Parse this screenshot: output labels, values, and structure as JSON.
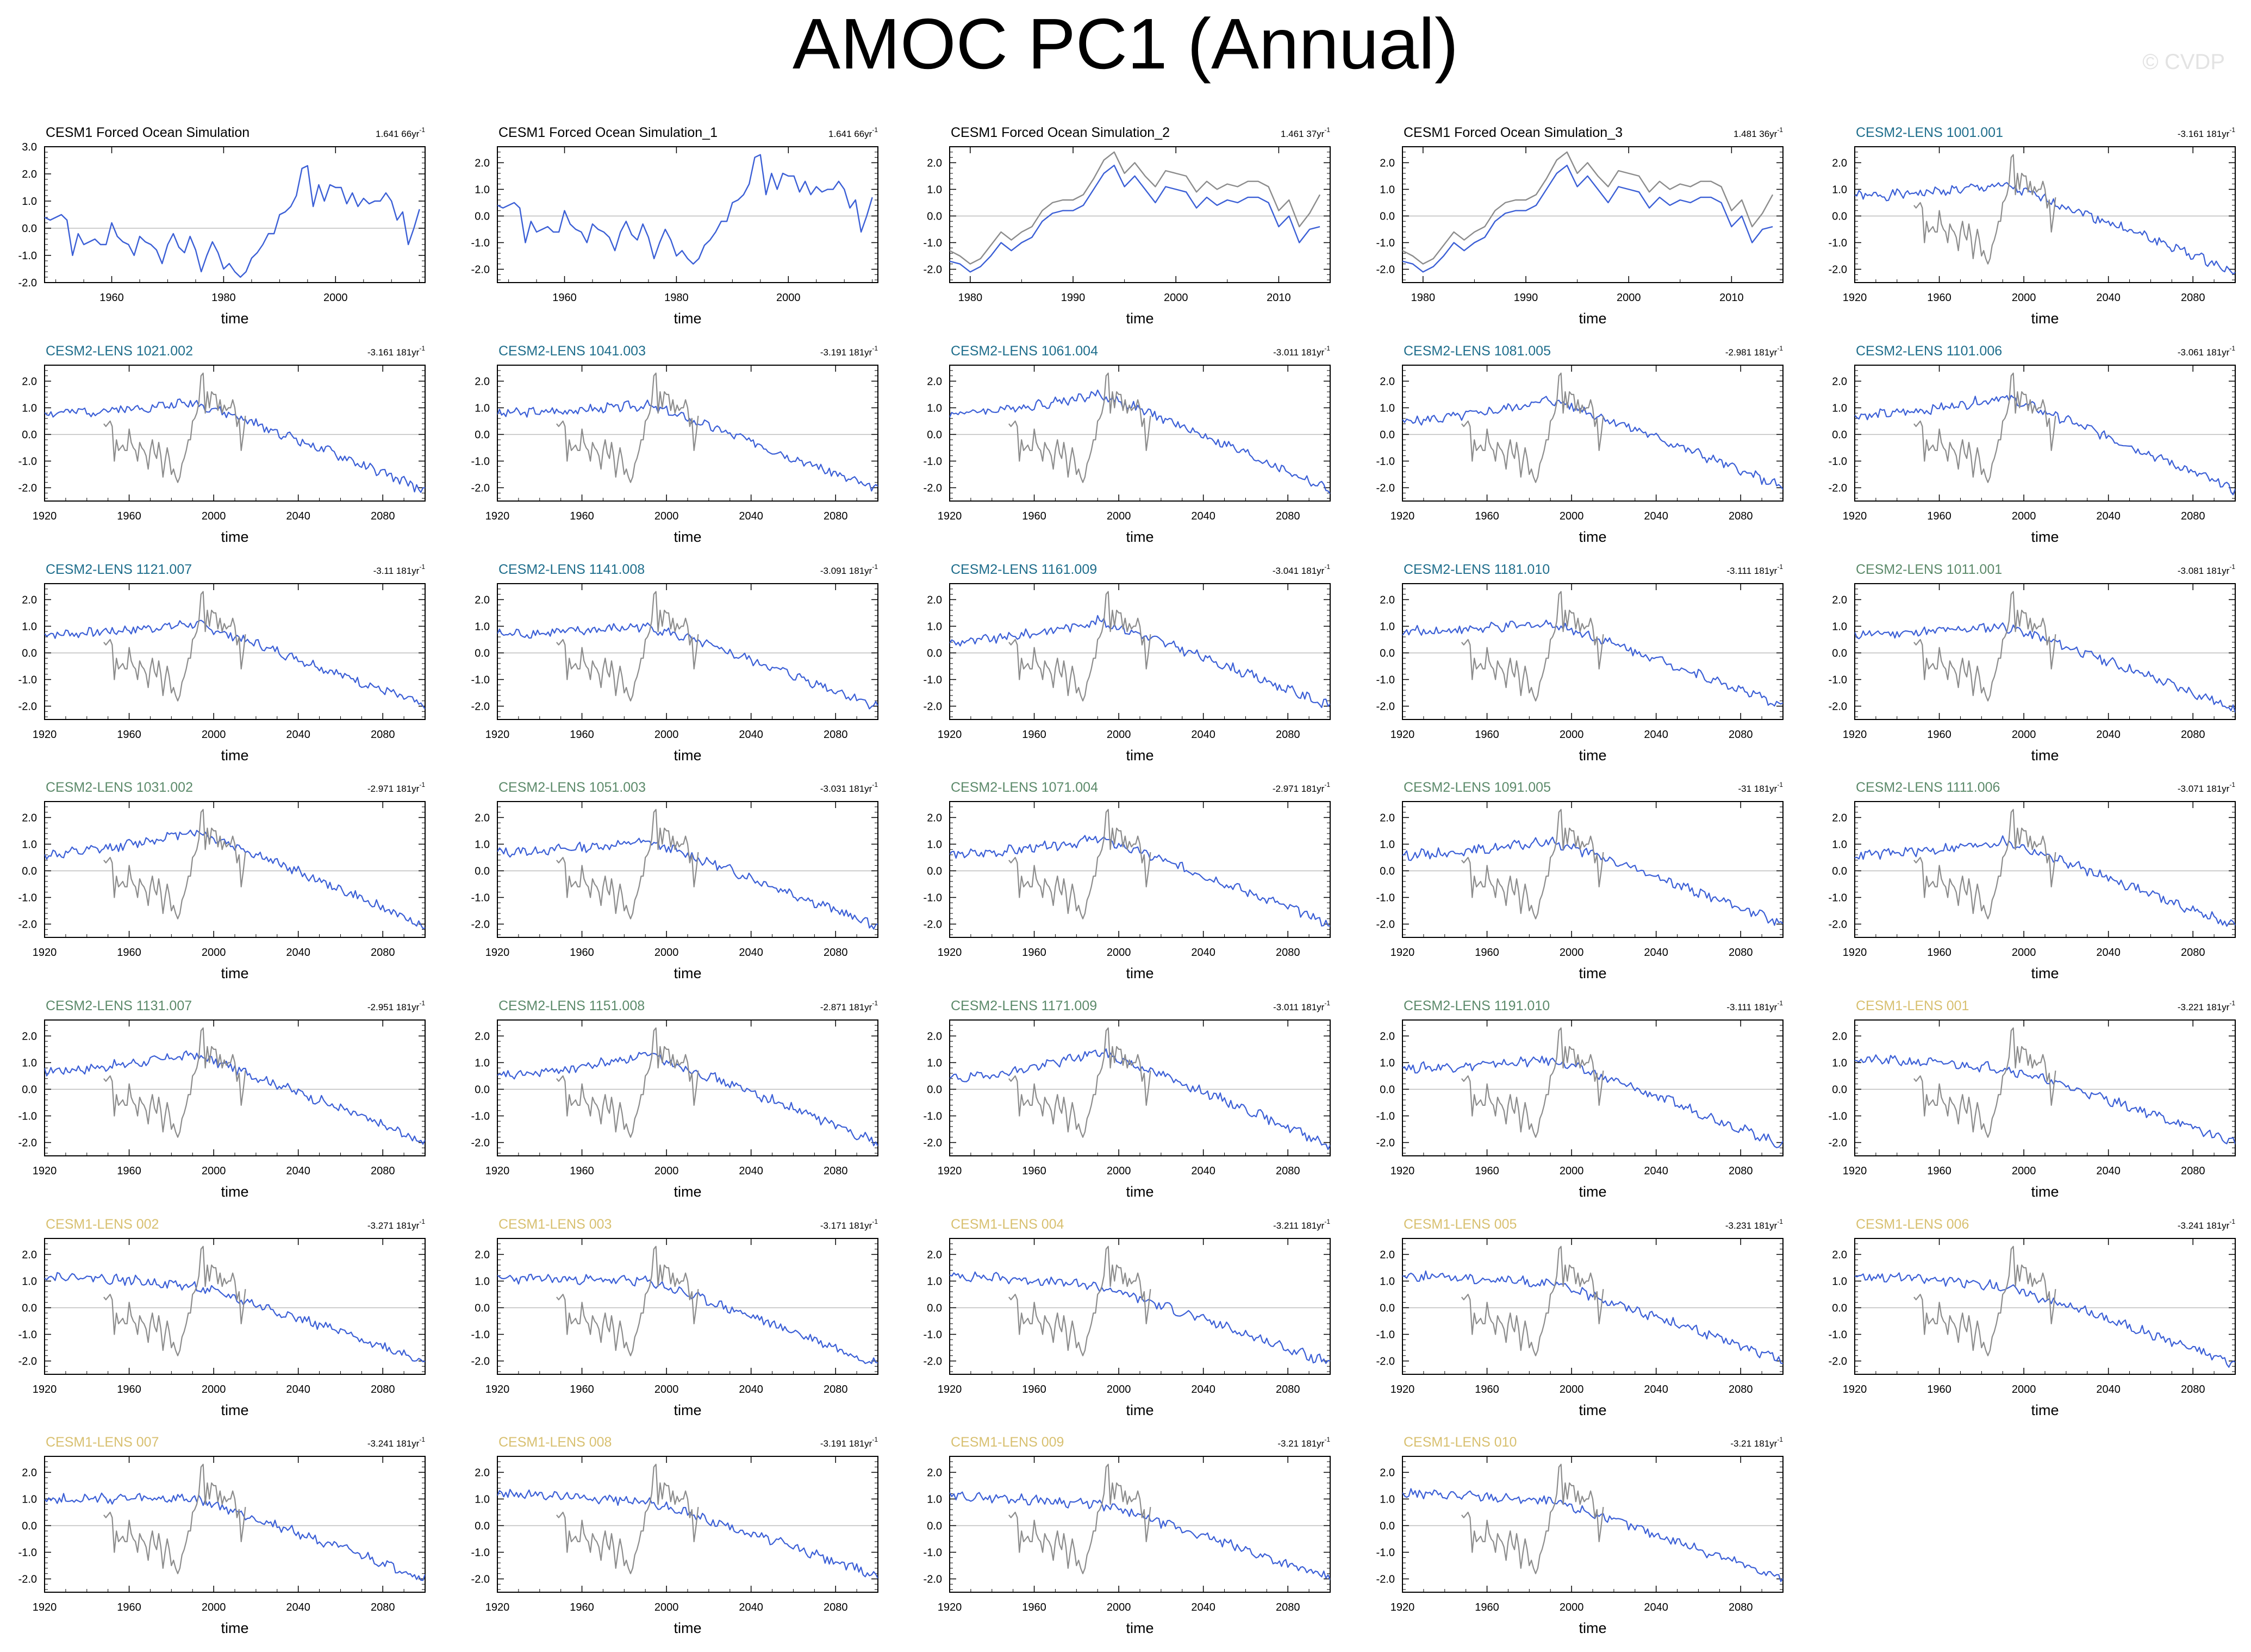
{
  "title": "AMOC PC1 (Annual)",
  "watermark": "© CVDP",
  "colors": {
    "model_line": "#3b5fd6",
    "observed_line": "#8c8c8c",
    "zero_line": "#bdbdbd",
    "title_obs": "#000000",
    "title_cesm2_teal": "#1f6e8c",
    "title_cesm2_green": "#5c8a6a",
    "title_cesm1": "#d8c070"
  },
  "chart_data": [
    {
      "type": "line",
      "title": "CESM1 Forced Ocean Simulation",
      "trend": "1.641 66yr",
      "trend_unit": "-1",
      "title_color": "title_obs",
      "xlabel": "time",
      "xlim": [
        1948,
        2016
      ],
      "xticks": [
        "1960",
        "1980",
        "2000"
      ],
      "ylim": [
        -2.0,
        3.0
      ],
      "yticks": [
        "3.0",
        "2.0",
        "1.0",
        "0.0",
        "-1.0",
        "-2.0"
      ],
      "series": [
        {
          "name": "CESM1 Forced Ocean Simulation",
          "color": "model_line",
          "x_start": 1948,
          "x_end": 2015,
          "values": [
            0.4,
            0.3,
            0.4,
            0.5,
            0.3,
            -1.0,
            -0.2,
            -0.6,
            -0.5,
            -0.4,
            -0.6,
            -0.6,
            0.2,
            -0.3,
            -0.5,
            -0.6,
            -1.0,
            -0.3,
            -0.5,
            -0.6,
            -0.8,
            -1.3,
            -0.6,
            -0.2,
            -0.7,
            -0.9,
            -0.3,
            -0.8,
            -1.6,
            -1.0,
            -0.5,
            -0.9,
            -1.5,
            -1.3,
            -1.6,
            -1.8,
            -1.6,
            -1.1,
            -0.9,
            -0.6,
            -0.2,
            -0.2,
            0.5,
            0.6,
            0.8,
            1.2,
            2.2,
            2.3,
            0.8,
            1.6,
            1.0,
            1.6,
            1.5,
            1.5,
            0.9,
            1.3,
            0.8,
            1.1,
            0.9,
            1.0,
            1.0,
            1.3,
            1.0,
            0.3,
            0.6,
            -0.6,
            0.0,
            0.7
          ]
        }
      ]
    },
    {
      "type": "line",
      "title": "CESM1 Forced Ocean Simulation_1",
      "trend": "1.641 66yr",
      "trend_unit": "-1",
      "title_color": "title_obs",
      "xlabel": "time",
      "xlim": [
        1948,
        2016
      ],
      "xticks": [
        "1960",
        "1980",
        "2000"
      ],
      "ylim": [
        -2.5,
        2.6
      ],
      "yticks": [
        "2.0",
        "1.0",
        "0.0",
        "-1.0",
        "-2.0"
      ],
      "series": [
        {
          "name": "CESM1 Forced Ocean Simulation_1",
          "color": "model_line",
          "x_start": 1948,
          "x_end": 2015,
          "values": [
            0.4,
            0.3,
            0.4,
            0.5,
            0.3,
            -1.0,
            -0.2,
            -0.6,
            -0.5,
            -0.4,
            -0.6,
            -0.6,
            0.2,
            -0.3,
            -0.5,
            -0.6,
            -1.0,
            -0.3,
            -0.5,
            -0.6,
            -0.8,
            -1.3,
            -0.6,
            -0.2,
            -0.7,
            -0.9,
            -0.3,
            -0.8,
            -1.6,
            -1.0,
            -0.5,
            -0.9,
            -1.5,
            -1.3,
            -1.6,
            -1.8,
            -1.6,
            -1.1,
            -0.9,
            -0.6,
            -0.2,
            -0.2,
            0.5,
            0.6,
            0.8,
            1.2,
            2.2,
            2.3,
            0.8,
            1.6,
            1.0,
            1.6,
            1.5,
            1.5,
            0.9,
            1.3,
            0.8,
            1.1,
            0.9,
            1.0,
            1.0,
            1.3,
            1.0,
            0.3,
            0.6,
            -0.6,
            0.0,
            0.7
          ]
        }
      ]
    },
    {
      "type": "line",
      "title": "CESM1 Forced Ocean Simulation_2",
      "trend": "1.461 37yr",
      "trend_unit": "-1",
      "title_color": "title_obs",
      "xlabel": "time",
      "xlim": [
        1978,
        2015
      ],
      "xticks": [
        "1980",
        "1990",
        "2000",
        "2010"
      ],
      "ylim": [
        -2.5,
        2.6
      ],
      "yticks": [
        "2.0",
        "1.0",
        "0.0",
        "-1.0",
        "-2.0"
      ],
      "series": [
        {
          "name": "CESM1 Forced Ocean Simulation",
          "color": "observed_line",
          "x_start": 1978,
          "x_end": 2014,
          "values": [
            -1.3,
            -1.5,
            -1.8,
            -1.6,
            -1.1,
            -0.6,
            -0.9,
            -0.6,
            -0.4,
            0.2,
            0.5,
            0.6,
            0.6,
            0.8,
            1.4,
            2.1,
            2.4,
            1.6,
            2.0,
            1.5,
            1.1,
            1.7,
            1.6,
            1.5,
            0.9,
            1.3,
            1.0,
            1.2,
            1.1,
            1.3,
            1.3,
            1.1,
            0.2,
            0.6,
            -0.4,
            0.1,
            0.8
          ]
        },
        {
          "name": "CESM1 Forced Ocean Simulation_2",
          "color": "model_line",
          "x_start": 1978,
          "x_end": 2014,
          "values": [
            -1.7,
            -1.8,
            -2.1,
            -1.9,
            -1.5,
            -1.0,
            -1.3,
            -1.0,
            -0.8,
            -0.2,
            0.1,
            0.2,
            0.2,
            0.4,
            1.0,
            1.6,
            1.9,
            1.1,
            1.5,
            1.0,
            0.5,
            1.1,
            1.0,
            0.9,
            0.3,
            0.7,
            0.4,
            0.6,
            0.5,
            0.7,
            0.7,
            0.5,
            -0.4,
            0.0,
            -1.0,
            -0.5,
            -0.4
          ]
        }
      ]
    },
    {
      "type": "line",
      "title": "CESM1 Forced Ocean Simulation_3",
      "trend": "1.481 36yr",
      "trend_unit": "-1",
      "title_color": "title_obs",
      "xlabel": "time",
      "xlim": [
        1978,
        2015
      ],
      "xticks": [
        "1980",
        "1990",
        "2000",
        "2010"
      ],
      "ylim": [
        -2.5,
        2.6
      ],
      "yticks": [
        "2.0",
        "1.0",
        "0.0",
        "-1.0",
        "-2.0"
      ],
      "series": [
        {
          "name": "CESM1 Forced Ocean Simulation",
          "color": "observed_line",
          "x_start": 1978,
          "x_end": 2014,
          "values": [
            -1.3,
            -1.5,
            -1.8,
            -1.6,
            -1.1,
            -0.6,
            -0.9,
            -0.6,
            -0.4,
            0.2,
            0.5,
            0.6,
            0.6,
            0.8,
            1.4,
            2.1,
            2.4,
            1.6,
            2.0,
            1.5,
            1.1,
            1.7,
            1.6,
            1.5,
            0.9,
            1.3,
            1.0,
            1.2,
            1.1,
            1.3,
            1.3,
            1.1,
            0.2,
            0.6,
            -0.4,
            0.1,
            0.8
          ]
        },
        {
          "name": "CESM1 Forced Ocean Simulation_3",
          "color": "model_line",
          "x_start": 1978,
          "x_end": 2014,
          "values": [
            -1.7,
            -1.8,
            -2.1,
            -1.9,
            -1.5,
            -1.0,
            -1.3,
            -1.0,
            -0.8,
            -0.2,
            0.1,
            0.2,
            0.2,
            0.4,
            1.0,
            1.6,
            1.9,
            1.1,
            1.5,
            1.0,
            0.5,
            1.1,
            1.0,
            0.9,
            0.3,
            0.7,
            0.4,
            0.6,
            0.5,
            0.7,
            0.7,
            0.5,
            -0.4,
            0.0,
            -1.0,
            -0.5,
            -0.4
          ]
        }
      ]
    },
    {
      "type": "line",
      "title": "CESM2-LENS 1001.001",
      "trend": "-3.161 181yr",
      "trend_unit": "-1",
      "title_color": "title_cesm2_teal",
      "ensemble": {
        "start": 0.75,
        "peak": 1.15,
        "end": -2.1,
        "seed": 1
      }
    },
    {
      "type": "line",
      "title": "CESM2-LENS 1021.002",
      "trend": "-3.161 181yr",
      "trend_unit": "-1",
      "title_color": "title_cesm2_teal",
      "ensemble": {
        "start": 0.8,
        "peak": 1.2,
        "end": -2.1,
        "seed": 2
      }
    },
    {
      "type": "line",
      "title": "CESM2-LENS 1041.003",
      "trend": "-3.191 181yr",
      "trend_unit": "-1",
      "title_color": "title_cesm2_teal",
      "ensemble": {
        "start": 0.8,
        "peak": 1.1,
        "end": -2.1,
        "seed": 3
      }
    },
    {
      "type": "line",
      "title": "CESM2-LENS 1061.004",
      "trend": "-3.011 181yr",
      "trend_unit": "-1",
      "title_color": "title_cesm2_teal",
      "ensemble": {
        "start": 0.8,
        "peak": 1.5,
        "end": -2.1,
        "seed": 4
      }
    },
    {
      "type": "line",
      "title": "CESM2-LENS 1081.005",
      "trend": "-2.981 181yr",
      "trend_unit": "-1",
      "title_color": "title_cesm2_teal",
      "ensemble": {
        "start": 0.5,
        "peak": 1.3,
        "end": -2.0,
        "seed": 5
      }
    },
    {
      "type": "line",
      "title": "CESM2-LENS 1101.006",
      "trend": "-3.061 181yr",
      "trend_unit": "-1",
      "title_color": "title_cesm2_teal",
      "ensemble": {
        "start": 0.7,
        "peak": 1.4,
        "end": -2.1,
        "seed": 6
      }
    },
    {
      "type": "line",
      "title": "CESM2-LENS 1121.007",
      "trend": "-3.11 181yr",
      "trend_unit": "-1",
      "title_color": "title_cesm2_teal",
      "ensemble": {
        "start": 0.7,
        "peak": 1.1,
        "end": -2.0,
        "seed": 7
      }
    },
    {
      "type": "line",
      "title": "CESM2-LENS 1141.008",
      "trend": "-3.091 181yr",
      "trend_unit": "-1",
      "title_color": "title_cesm2_teal",
      "ensemble": {
        "start": 0.7,
        "peak": 1.0,
        "end": -2.0,
        "seed": 8
      }
    },
    {
      "type": "line",
      "title": "CESM2-LENS 1161.009",
      "trend": "-3.041 181yr",
      "trend_unit": "-1",
      "title_color": "title_cesm2_teal",
      "ensemble": {
        "start": 0.4,
        "peak": 1.2,
        "end": -2.0,
        "seed": 9
      }
    },
    {
      "type": "line",
      "title": "CESM2-LENS 1181.010",
      "trend": "-3.111 181yr",
      "trend_unit": "-1",
      "title_color": "title_cesm2_teal",
      "ensemble": {
        "start": 0.8,
        "peak": 1.1,
        "end": -2.0,
        "seed": 10
      }
    },
    {
      "type": "line",
      "title": "CESM2-LENS 1011.001",
      "trend": "-3.081 181yr",
      "trend_unit": "-1",
      "title_color": "title_cesm2_green",
      "ensemble": {
        "start": 0.7,
        "peak": 1.0,
        "end": -2.1,
        "seed": 11
      }
    },
    {
      "type": "line",
      "title": "CESM2-LENS 1031.002",
      "trend": "-2.971 181yr",
      "trend_unit": "-1",
      "title_color": "title_cesm2_green",
      "ensemble": {
        "start": 0.6,
        "peak": 1.5,
        "end": -2.1,
        "seed": 12
      }
    },
    {
      "type": "line",
      "title": "CESM2-LENS 1051.003",
      "trend": "-3.031 181yr",
      "trend_unit": "-1",
      "title_color": "title_cesm2_green",
      "ensemble": {
        "start": 0.7,
        "peak": 1.1,
        "end": -2.1,
        "seed": 13
      }
    },
    {
      "type": "line",
      "title": "CESM2-LENS 1071.004",
      "trend": "-2.971 181yr",
      "trend_unit": "-1",
      "title_color": "title_cesm2_green",
      "ensemble": {
        "start": 0.6,
        "peak": 1.2,
        "end": -2.0,
        "seed": 14
      }
    },
    {
      "type": "line",
      "title": "CESM2-LENS 1091.005",
      "trend": "-31 181yr",
      "trend_unit": "-1",
      "title_color": "title_cesm2_green",
      "ensemble": {
        "start": 0.6,
        "peak": 1.1,
        "end": -2.0,
        "seed": 15
      }
    },
    {
      "type": "line",
      "title": "CESM2-LENS 1111.006",
      "trend": "-3.071 181yr",
      "trend_unit": "-1",
      "title_color": "title_cesm2_green",
      "ensemble": {
        "start": 0.6,
        "peak": 1.1,
        "end": -2.1,
        "seed": 16
      }
    },
    {
      "type": "line",
      "title": "CESM2-LENS 1131.007",
      "trend": "-2.951 181yr",
      "trend_unit": "-1",
      "title_color": "title_cesm2_green",
      "ensemble": {
        "start": 0.7,
        "peak": 1.3,
        "end": -2.0,
        "seed": 17
      }
    },
    {
      "type": "line",
      "title": "CESM2-LENS 1151.008",
      "trend": "-2.871 181yr",
      "trend_unit": "-1",
      "title_color": "title_cesm2_green",
      "ensemble": {
        "start": 0.5,
        "peak": 1.3,
        "end": -2.0,
        "seed": 18
      }
    },
    {
      "type": "line",
      "title": "CESM2-LENS 1171.009",
      "trend": "-3.011 181yr",
      "trend_unit": "-1",
      "title_color": "title_cesm2_green",
      "ensemble": {
        "start": 0.4,
        "peak": 1.4,
        "end": -2.1,
        "seed": 19
      }
    },
    {
      "type": "line",
      "title": "CESM2-LENS 1191.010",
      "trend": "-3.111 181yr",
      "trend_unit": "-1",
      "title_color": "title_cesm2_green",
      "ensemble": {
        "start": 0.8,
        "peak": 1.1,
        "end": -2.1,
        "seed": 20
      }
    },
    {
      "type": "line",
      "title": "CESM1-LENS 001",
      "trend": "-3.221 181yr",
      "trend_unit": "-1",
      "title_color": "title_cesm1",
      "ensemble": {
        "start": 1.1,
        "peak": 0.8,
        "end": -2.0,
        "seed": 21
      }
    },
    {
      "type": "line",
      "title": "CESM1-LENS 002",
      "trend": "-3.271 181yr",
      "trend_unit": "-1",
      "title_color": "title_cesm1",
      "ensemble": {
        "start": 1.2,
        "peak": 0.8,
        "end": -2.0,
        "seed": 22
      }
    },
    {
      "type": "line",
      "title": "CESM1-LENS 003",
      "trend": "-3.171 181yr",
      "trend_unit": "-1",
      "title_color": "title_cesm1",
      "ensemble": {
        "start": 1.1,
        "peak": 1.0,
        "end": -2.1,
        "seed": 23
      }
    },
    {
      "type": "line",
      "title": "CESM1-LENS 004",
      "trend": "-3.211 181yr",
      "trend_unit": "-1",
      "title_color": "title_cesm1",
      "ensemble": {
        "start": 1.2,
        "peak": 0.8,
        "end": -2.1,
        "seed": 24
      }
    },
    {
      "type": "line",
      "title": "CESM1-LENS 005",
      "trend": "-3.231 181yr",
      "trend_unit": "-1",
      "title_color": "title_cesm1",
      "ensemble": {
        "start": 1.2,
        "peak": 0.9,
        "end": -2.0,
        "seed": 25
      }
    },
    {
      "type": "line",
      "title": "CESM1-LENS 006",
      "trend": "-3.241 181yr",
      "trend_unit": "-1",
      "title_color": "title_cesm1",
      "ensemble": {
        "start": 1.2,
        "peak": 0.8,
        "end": -2.1,
        "seed": 26
      }
    },
    {
      "type": "line",
      "title": "CESM1-LENS 007",
      "trend": "-3.241 181yr",
      "trend_unit": "-1",
      "title_color": "title_cesm1",
      "ensemble": {
        "start": 1.0,
        "peak": 1.0,
        "end": -2.0,
        "seed": 27
      }
    },
    {
      "type": "line",
      "title": "CESM1-LENS 008",
      "trend": "-3.191 181yr",
      "trend_unit": "-1",
      "title_color": "title_cesm1",
      "ensemble": {
        "start": 1.2,
        "peak": 0.9,
        "end": -1.9,
        "seed": 28
      }
    },
    {
      "type": "line",
      "title": "CESM1-LENS 009",
      "trend": "-3.21 181yr",
      "trend_unit": "-1",
      "title_color": "title_cesm1",
      "ensemble": {
        "start": 1.1,
        "peak": 0.8,
        "end": -2.0,
        "seed": 29
      }
    },
    {
      "type": "line",
      "title": "CESM1-LENS 010",
      "trend": "-3.21 181yr",
      "trend_unit": "-1",
      "title_color": "title_cesm1",
      "ensemble": {
        "start": 1.2,
        "peak": 0.9,
        "end": -2.0,
        "seed": 30
      }
    }
  ],
  "ensemble_axes": {
    "xlabel": "time",
    "xlim": [
      1920,
      2100
    ],
    "xticks": [
      "1920",
      "1960",
      "2000",
      "2040",
      "2080"
    ],
    "ylim": [
      -2.5,
      2.6
    ],
    "yticks": [
      "2.0",
      "1.0",
      "0.0",
      "-1.0",
      "-2.0"
    ],
    "model_x_start": 1920,
    "model_x_end": 2100,
    "observed_x_start": 1948,
    "observed_x_end": 2015
  }
}
